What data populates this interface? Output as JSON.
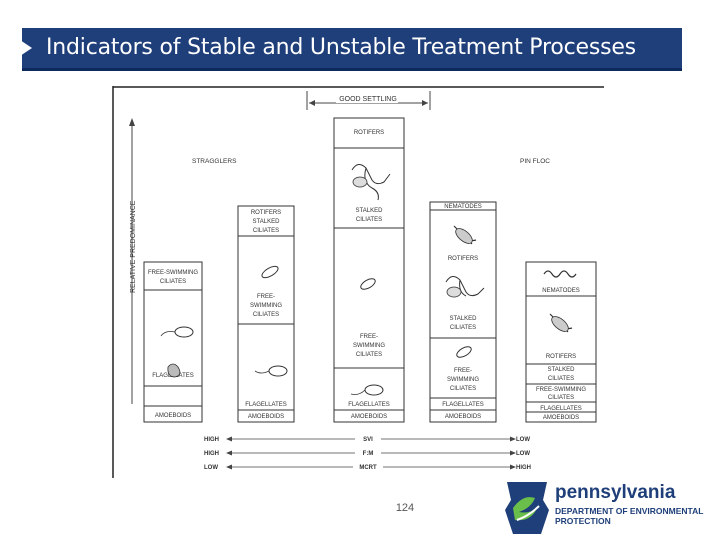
{
  "slide": {
    "title": "Indicators of Stable and Unstable Treatment Processes",
    "page_number": "124"
  },
  "diagram": {
    "top_labels": {
      "good_settling": "GOOD SETTLING",
      "stragglers": "STRAGGLERS",
      "pin_floc": "PIN FLOC"
    },
    "y_axis_label": "RELATIVE PREDOMINANCE",
    "columns": [
      {
        "top": "FREE-SWIMMING CILIATES",
        "labels": [
          "FREE-SWIMMING",
          "CILIATES",
          "FLAGELLATES",
          "AMOEBOIDS"
        ]
      },
      {
        "labels": [
          "ROTIFERS",
          "STALKED",
          "CILIATES",
          "FREE-",
          "SWIMMING",
          "CILIATES",
          "FLAGELLATES",
          "AMOEBOIDS"
        ]
      },
      {
        "labels": [
          "ROTIFERS",
          "STALKED",
          "CILIATES",
          "FREE-",
          "SWIMMING",
          "CILIATES",
          "FLAGELLATES",
          "AMOEBOIDS"
        ]
      },
      {
        "labels": [
          "NEMATODES",
          "ROTIFERS",
          "STALKED",
          "CILIATES",
          "FREE-",
          "SWIMMING",
          "CILIATES",
          "FLAGELLATES",
          "AMOEBOIDS"
        ]
      },
      {
        "labels": [
          "NEMATODES",
          "ROTIFERS",
          "STALKED",
          "CILIATES",
          "FREE-SWIMMING",
          "CILIATES",
          "FLAGELLATES",
          "AMOEBOIDS"
        ]
      }
    ],
    "scales": [
      {
        "left": "HIGH",
        "name": "SVI",
        "right": "LOW"
      },
      {
        "left": "HIGH",
        "name": "F:M",
        "right": "LOW"
      },
      {
        "left": "LOW",
        "name": "MCRT",
        "right": "HIGH"
      }
    ]
  },
  "logo": {
    "name": "pennsylvania",
    "line1": "DEPARTMENT OF ENVIRONMENTAL",
    "line2": "PROTECTION"
  }
}
